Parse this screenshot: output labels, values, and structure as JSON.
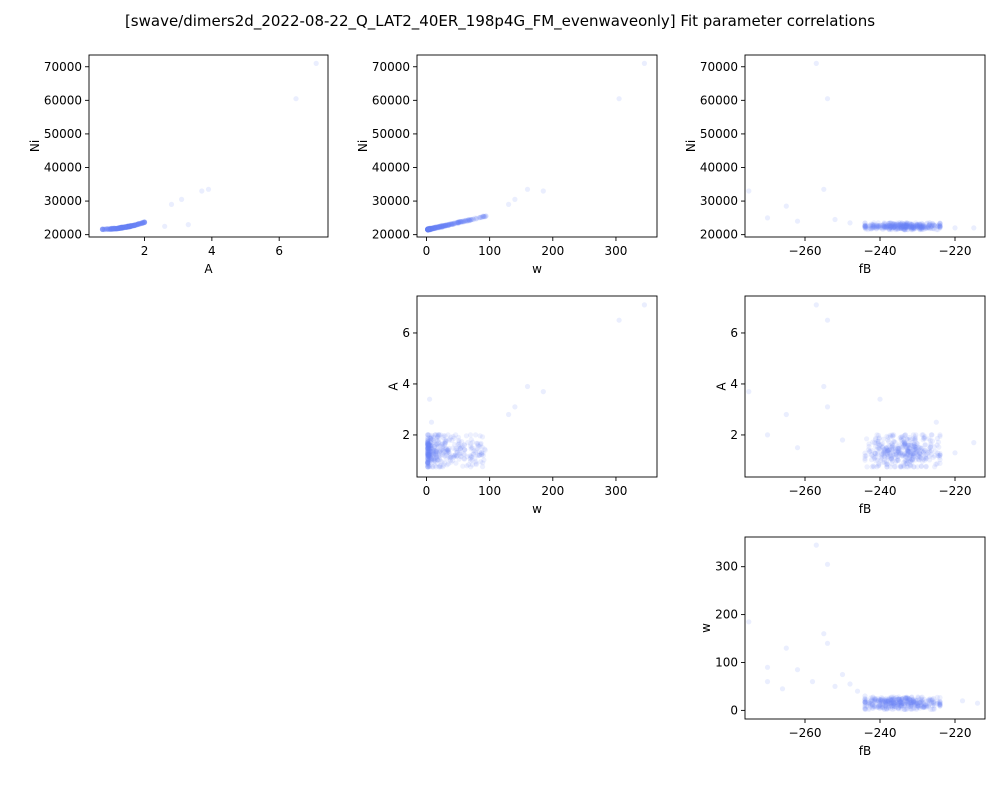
{
  "figure": {
    "title": "[swave/dimers2d_2022-08-22_Q_LAT2_40ER_198p4G_FM_evenwaveonly] Fit parameter correlations"
  },
  "colors": {
    "point": "#6b86f5",
    "axes": "#000000",
    "background": "#ffffff"
  },
  "chart_data": [
    {
      "type": "scatter",
      "id": "A-Ni",
      "xlabel": "A",
      "ylabel": "Ni",
      "xlim": [
        0.35,
        7.45
      ],
      "ylim": [
        19300,
        73500
      ],
      "xticks": [
        2,
        4,
        6
      ],
      "xtick_labels": [
        "2",
        "4",
        "6"
      ],
      "yticks": [
        20000,
        30000,
        40000,
        50000,
        60000,
        70000
      ],
      "ytick_labels": [
        "20000",
        "30000",
        "40000",
        "50000",
        "60000",
        "70000"
      ],
      "cluster": {
        "x_range": [
          0.75,
          2.0
        ],
        "y_range": [
          21500,
          24500
        ]
      },
      "outliers": [
        [
          7.1,
          71000
        ],
        [
          6.5,
          60500
        ],
        [
          3.9,
          33500
        ],
        [
          3.7,
          33000
        ],
        [
          3.1,
          30500
        ],
        [
          2.8,
          29000
        ],
        [
          3.3,
          23000
        ],
        [
          2.6,
          22500
        ]
      ]
    },
    {
      "type": "scatter",
      "id": "w-Ni",
      "xlabel": "w",
      "ylabel": "Ni",
      "xlim": [
        -15,
        365
      ],
      "ylim": [
        19300,
        73500
      ],
      "xticks": [
        0,
        100,
        200,
        300
      ],
      "xtick_labels": [
        "0",
        "100",
        "200",
        "300"
      ],
      "yticks": [
        20000,
        30000,
        40000,
        50000,
        60000,
        70000
      ],
      "ytick_labels": [
        "20000",
        "30000",
        "40000",
        "50000",
        "60000",
        "70000"
      ],
      "cluster": {
        "x_range": [
          2,
          95
        ],
        "y_range": [
          21500,
          26000
        ]
      },
      "outliers": [
        [
          345,
          71000
        ],
        [
          305,
          60500
        ],
        [
          160,
          33500
        ],
        [
          185,
          33000
        ],
        [
          140,
          30500
        ],
        [
          130,
          29000
        ]
      ]
    },
    {
      "type": "scatter",
      "id": "fB-Ni",
      "xlabel": "fB",
      "ylabel": "Ni",
      "xlim": [
        -276,
        -212
      ],
      "ylim": [
        19300,
        73500
      ],
      "xticks": [
        -260,
        -240,
        -220
      ],
      "xtick_labels": [
        "−260",
        "−240",
        "−220"
      ],
      "yticks": [
        20000,
        30000,
        40000,
        50000,
        60000,
        70000
      ],
      "ytick_labels": [
        "20000",
        "30000",
        "40000",
        "50000",
        "60000",
        "70000"
      ],
      "cluster": {
        "x_range": [
          -244,
          -224
        ],
        "y_range": [
          21500,
          23500
        ]
      },
      "outliers": [
        [
          -257,
          71000
        ],
        [
          -254,
          60500
        ],
        [
          -255,
          33500
        ],
        [
          -275,
          33000
        ],
        [
          -265,
          28500
        ],
        [
          -270,
          25000
        ],
        [
          -262,
          24000
        ],
        [
          -252,
          24500
        ],
        [
          -248,
          23500
        ],
        [
          -220,
          22000
        ],
        [
          -215,
          22000
        ]
      ]
    },
    {
      "type": "scatter",
      "id": "w-A",
      "xlabel": "w",
      "ylabel": "A",
      "xlim": [
        -15,
        365
      ],
      "ylim": [
        0.35,
        7.45
      ],
      "xticks": [
        0,
        100,
        200,
        300
      ],
      "xtick_labels": [
        "0",
        "100",
        "200",
        "300"
      ],
      "yticks": [
        2,
        4,
        6
      ],
      "ytick_labels": [
        "2",
        "4",
        "6"
      ],
      "cluster": {
        "x_range": [
          2,
          95
        ],
        "y_range": [
          0.75,
          2.0
        ]
      },
      "outliers": [
        [
          345,
          7.1
        ],
        [
          305,
          6.5
        ],
        [
          160,
          3.9
        ],
        [
          185,
          3.7
        ],
        [
          140,
          3.1
        ],
        [
          130,
          2.8
        ],
        [
          5,
          3.4
        ],
        [
          8,
          2.5
        ]
      ]
    },
    {
      "type": "scatter",
      "id": "fB-A",
      "xlabel": "fB",
      "ylabel": "A",
      "xlim": [
        -276,
        -212
      ],
      "ylim": [
        0.35,
        7.45
      ],
      "xticks": [
        -260,
        -240,
        -220
      ],
      "xtick_labels": [
        "−260",
        "−240",
        "−220"
      ],
      "yticks": [
        2,
        4,
        6
      ],
      "ytick_labels": [
        "2",
        "4",
        "6"
      ],
      "cluster": {
        "x_range": [
          -244,
          -224
        ],
        "y_range": [
          0.75,
          2.0
        ]
      },
      "outliers": [
        [
          -257,
          7.1
        ],
        [
          -254,
          6.5
        ],
        [
          -255,
          3.9
        ],
        [
          -275,
          3.7
        ],
        [
          -254,
          3.1
        ],
        [
          -265,
          2.8
        ],
        [
          -240,
          3.4
        ],
        [
          -225,
          2.5
        ],
        [
          -270,
          2.0
        ],
        [
          -262,
          1.5
        ],
        [
          -250,
          1.8
        ],
        [
          -220,
          1.3
        ],
        [
          -215,
          1.7
        ]
      ]
    },
    {
      "type": "scatter",
      "id": "fB-w",
      "xlabel": "fB",
      "ylabel": "w",
      "xlim": [
        -276,
        -212
      ],
      "ylim": [
        -18,
        362
      ],
      "xticks": [
        -260,
        -240,
        -220
      ],
      "xtick_labels": [
        "−260",
        "−240",
        "−220"
      ],
      "yticks": [
        0,
        100,
        200,
        300
      ],
      "ytick_labels": [
        "0",
        "100",
        "200",
        "300"
      ],
      "cluster": {
        "x_range": [
          -244,
          -224
        ],
        "y_range": [
          2,
          28
        ]
      },
      "outliers": [
        [
          -257,
          345
        ],
        [
          -254,
          305
        ],
        [
          -255,
          160
        ],
        [
          -275,
          185
        ],
        [
          -254,
          140
        ],
        [
          -265,
          130
        ],
        [
          -270,
          90
        ],
        [
          -262,
          85
        ],
        [
          -250,
          75
        ],
        [
          -258,
          60
        ],
        [
          -252,
          50
        ],
        [
          -246,
          40
        ],
        [
          -248,
          55
        ],
        [
          -244,
          30
        ],
        [
          -218,
          20
        ],
        [
          -214,
          15
        ],
        [
          -270,
          60
        ],
        [
          -266,
          45
        ]
      ]
    }
  ]
}
